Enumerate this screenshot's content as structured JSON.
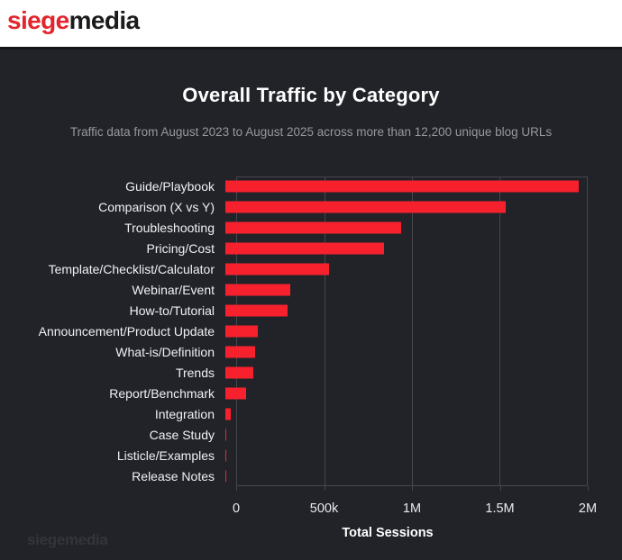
{
  "header": {
    "logo_part_red": "siege",
    "logo_part_dark": "media"
  },
  "chart_data": {
    "type": "bar",
    "orientation": "horizontal",
    "title": "Overall Traffic by Category",
    "subtitle": "Traffic data from August 2023 to August 2025 across more than 12,200 unique blog URLs",
    "xlabel": "Total Sessions",
    "ylabel": "",
    "xlim": [
      0,
      2000000
    ],
    "grid": true,
    "legend": "none",
    "bar_color": "#f7212e",
    "x_ticks": [
      {
        "value": 0,
        "label": "0"
      },
      {
        "value": 500000,
        "label": "500k"
      },
      {
        "value": 1000000,
        "label": "1M"
      },
      {
        "value": 1500000,
        "label": "1.5M"
      },
      {
        "value": 2000000,
        "label": "2M"
      }
    ],
    "categories": [
      "Guide/Playbook",
      "Comparison (X vs Y)",
      "Troubleshooting",
      "Pricing/Cost",
      "Template/Checklist/Calculator",
      "Webinar/Event",
      "How-to/Tutorial",
      "Announcement/Product Update",
      "What-is/Definition",
      "Trends",
      "Report/Benchmark",
      "Integration",
      "Case Study",
      "Listicle/Examples",
      "Release Notes"
    ],
    "values": [
      1950000,
      1545000,
      970000,
      875000,
      570000,
      360000,
      345000,
      180000,
      165000,
      155000,
      112000,
      30000,
      6000,
      2000,
      1000
    ]
  },
  "watermark": "siegemedia",
  "colors": {
    "panel_background": "#212329",
    "bar": "#f7212e",
    "grid": "#45474c",
    "title": "#ffffff",
    "subtitle": "#97989d",
    "category_label": "#f0f1f3",
    "logo_red": "#e4242c",
    "logo_dark": "#1b1b1d",
    "watermark": "#33353b"
  }
}
